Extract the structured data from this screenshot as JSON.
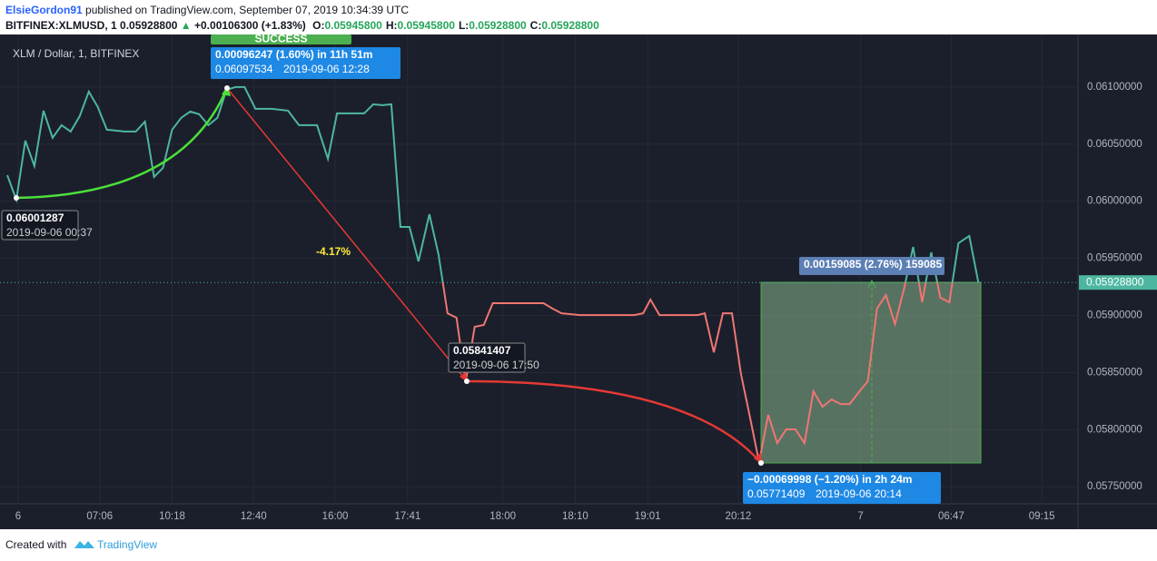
{
  "chart_data": {
    "type": "line",
    "author": "ElsieGordon91",
    "published": " published on TradingView.com, September 07, 2019 10:34:39 UTC",
    "symbol": "BITFINEX:XLMUSD, 1",
    "last": "0.05928800",
    "change": "+0.00106300 (+1.83%)",
    "ohlc": [
      {
        "key": "O:",
        "value": "0.05945800"
      },
      {
        "key": "H:",
        "value": "0.05945800"
      },
      {
        "key": "L:",
        "value": "0.05928800"
      },
      {
        "key": "C:",
        "value": "0.05928800"
      }
    ],
    "title": "XLM / Dollar, 1, BITFINEX",
    "footer": "Created with",
    "brand": "TradingView",
    "color_above": "#4db6a0",
    "color_below": "#ef7672",
    "baseline": {
      "value": 0.059288,
      "label": "0.05928800"
    },
    "xlim": [
      0,
      119
    ],
    "ylim": [
      0.05735,
      0.06146
    ],
    "grid": true,
    "xticks": [
      {
        "value": 2,
        "label": "6"
      },
      {
        "value": 11,
        "label": "07:06"
      },
      {
        "value": 19,
        "label": "10:18"
      },
      {
        "value": 28,
        "label": "12:40"
      },
      {
        "value": 37,
        "label": "16:00"
      },
      {
        "value": 45,
        "label": "17:41"
      },
      {
        "value": 55.5,
        "label": "18:00"
      },
      {
        "value": 63.5,
        "label": "18:10"
      },
      {
        "value": 71.5,
        "label": "19:01"
      },
      {
        "value": 81.5,
        "label": "20:12"
      },
      {
        "value": 95,
        "label": "7"
      },
      {
        "value": 105,
        "label": "06:47"
      },
      {
        "value": 115,
        "label": "09:15"
      }
    ],
    "yticks": [
      {
        "value": 0.0575,
        "label": "0.05750000"
      },
      {
        "value": 0.058,
        "label": "0.05800000"
      },
      {
        "value": 0.0585,
        "label": "0.05850000"
      },
      {
        "value": 0.059,
        "label": "0.05900000"
      },
      {
        "value": 0.0595,
        "label": "0.05950000"
      },
      {
        "value": 0.06,
        "label": "0.06000000"
      },
      {
        "value": 0.0605,
        "label": "0.06050000"
      },
      {
        "value": 0.061,
        "label": "0.06100000"
      }
    ],
    "x": [
      0.8,
      1.8,
      2.8,
      3.8,
      4.8,
      5.8,
      6.8,
      7.8,
      8.8,
      9.8,
      10.8,
      11.8,
      13.8,
      15,
      16,
      17,
      18,
      19,
      20,
      21,
      22,
      23,
      24,
      25,
      26,
      27,
      28.2,
      30,
      31.8,
      33,
      35,
      36.2,
      37.2,
      38.2,
      40.2,
      41.2,
      42.2,
      43.2,
      44.2,
      45.2,
      46.2,
      47.4,
      48.4,
      49.4,
      50.4,
      51.4,
      52.4,
      53.4,
      54.4,
      56,
      60,
      61,
      62,
      64,
      70,
      71,
      71.8,
      72.8,
      77,
      77.8,
      78.8,
      79.8,
      80.8,
      81.8,
      82.8,
      83.8,
      84.8,
      85.8,
      86.8,
      87.8,
      88.8,
      89.8,
      90.8,
      91.8,
      92.8,
      93.8,
      94.8,
      95.8,
      96.8,
      97.8,
      98.8,
      99.8,
      100.8,
      101.8,
      102.8,
      103.8,
      104.8,
      105.8,
      107,
      108
    ],
    "series": [
      {
        "name": "XLM / Dollar",
        "values": [
          0.060228,
          0.06001287,
          0.060531,
          0.060308,
          0.060793,
          0.060555,
          0.060666,
          0.06061,
          0.060745,
          0.06096,
          0.060825,
          0.060626,
          0.06061,
          0.06061,
          0.060698,
          0.060213,
          0.060292,
          0.060626,
          0.06073,
          0.060785,
          0.060761,
          0.060666,
          0.06073,
          0.06097534,
          0.061,
          0.061,
          0.060809,
          0.060809,
          0.060793,
          0.060666,
          0.060666,
          0.060372,
          0.060769,
          0.060769,
          0.060769,
          0.060849,
          0.060841,
          0.060849,
          0.059775,
          0.059775,
          0.059473,
          0.059886,
          0.059536,
          0.059019,
          0.05898,
          0.05841407,
          0.0589,
          0.058916,
          0.059107,
          0.059107,
          0.059107,
          0.059059,
          0.059019,
          0.059003,
          0.059003,
          0.059019,
          0.059139,
          0.059003,
          0.059003,
          0.059019,
          0.058677,
          0.059019,
          0.059019,
          0.058487,
          0.058105,
          0.05771409,
          0.058129,
          0.057882,
          0.058002,
          0.058002,
          0.057882,
          0.058335,
          0.0582,
          0.058264,
          0.058224,
          0.058224,
          0.058327,
          0.058423,
          0.059059,
          0.059178,
          0.058924,
          0.059234,
          0.0596,
          0.059115,
          0.059552,
          0.059155,
          0.059115,
          0.059632,
          0.059696,
          0.059288
        ]
      }
    ],
    "annotations": [
      {
        "lines": [
          "0.06001287",
          "2019-09-06 00:37"
        ]
      },
      {
        "lines": [
          "0.00096247 (1.60%) in 11h 51m",
          "0.06097534",
          "2019-09-06  12:28"
        ]
      },
      {
        "lines": [
          "SUCCESS"
        ]
      },
      {
        "lines": [
          "-4.17%"
        ]
      },
      {
        "lines": [
          "0.05841407",
          "2019-09-06 17:50"
        ]
      },
      {
        "lines": [
          "0.00159085 (2.76%) 159085"
        ]
      },
      {
        "lines": [
          "−0.00069998 (−1.20%) in 2h 24m",
          "0.05771409",
          "2019-09-06  20:14"
        ]
      }
    ]
  }
}
